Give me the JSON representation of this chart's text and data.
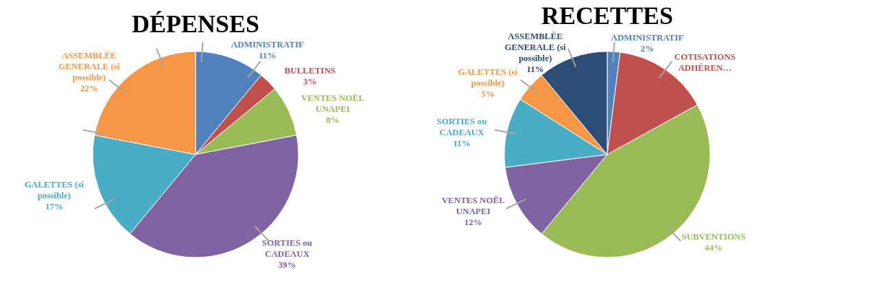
{
  "chart_data": [
    {
      "type": "pie",
      "title": "DÉPENSES",
      "categories": [
        "ADMINISTRATIF",
        "BULLETINS",
        "VENTES NOËL UNAPEI",
        "SORTIES ou CADEAUX",
        "GALETTES (si possible)",
        "ASSEMBLÉE GENERALE (si possible)"
      ],
      "values": [
        11,
        3,
        8,
        39,
        17,
        22
      ],
      "colors": [
        "#4f81bd",
        "#c0504d",
        "#9bbb59",
        "#8064a2",
        "#4bacc6",
        "#f79646"
      ],
      "value_labels": [
        "11%",
        "3%",
        "8%",
        "39%",
        "17%",
        "22%"
      ]
    },
    {
      "type": "pie",
      "title": "RECETTES",
      "categories": [
        "ADMINISTRATIF",
        "COTISATIONS ADHÉREN…",
        "SUBVENTIONS",
        "VENTES NOËL UNAPEI",
        "SORTIES ou CADEAUX",
        "GALETTES (si possible)",
        "ASSEMBLÉE GENERALE (si possible)"
      ],
      "values": [
        2,
        15,
        44,
        12,
        11,
        5,
        11
      ],
      "colors": [
        "#4f81bd",
        "#c0504d",
        "#9bbb59",
        "#8064a2",
        "#4bacc6",
        "#f79646",
        "#2c4d75"
      ],
      "value_labels": [
        "2%",
        null,
        "44%",
        "12%",
        "11%",
        "5%",
        "11%"
      ]
    }
  ]
}
